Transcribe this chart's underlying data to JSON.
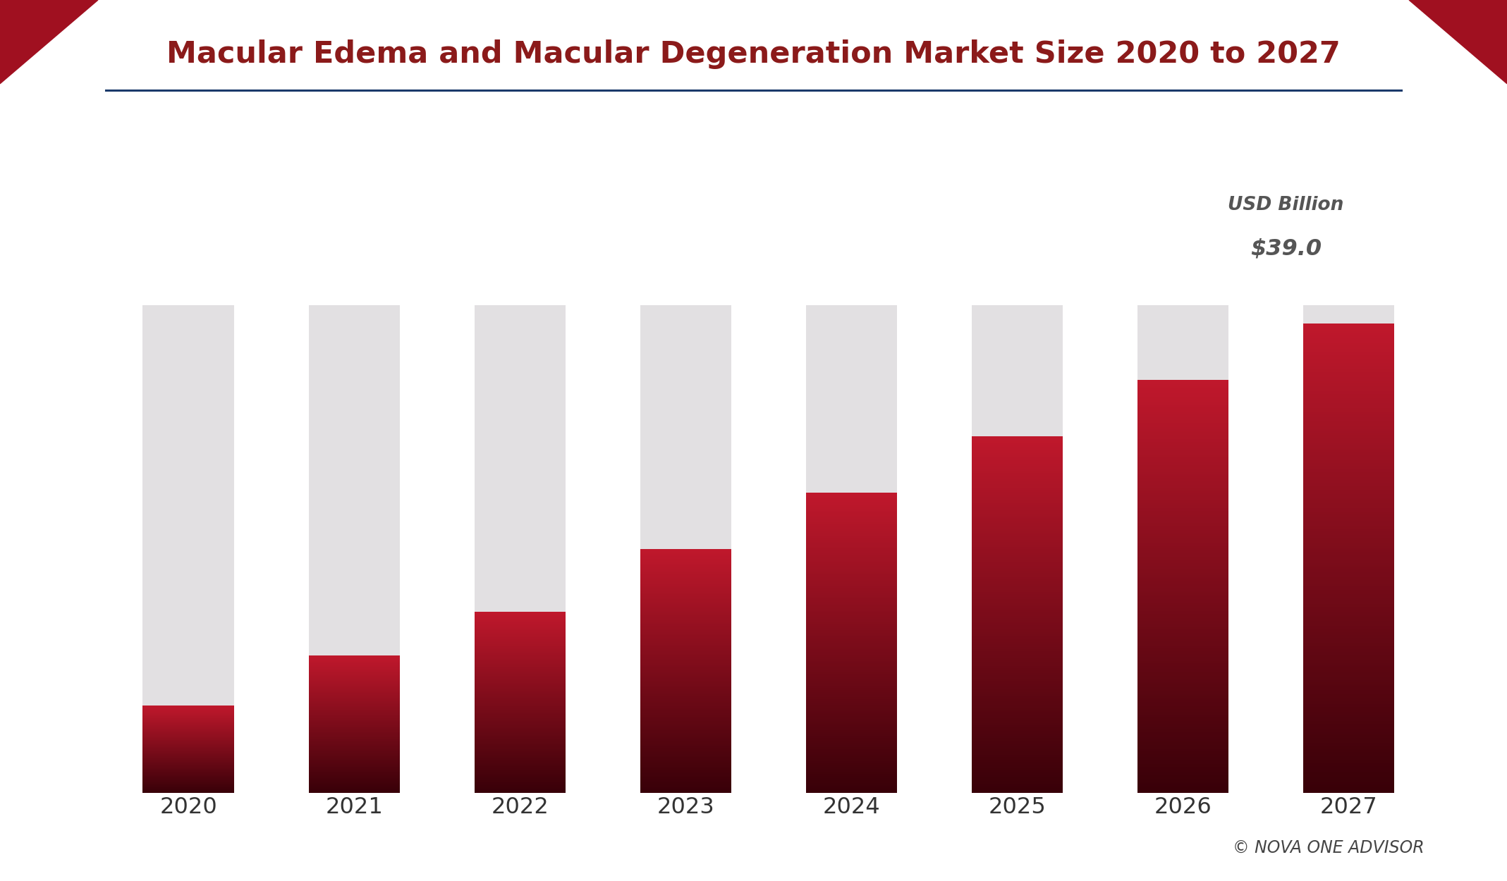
{
  "title": "Macular Edema and Macular Degeneration Market Size 2020 to 2027",
  "title_color": "#8B1A1A",
  "background_color": "#FFFFFF",
  "years": [
    "2020",
    "2021",
    "2022",
    "2023",
    "2024",
    "2025",
    "2026",
    "2027"
  ],
  "total_bar_height": 39.0,
  "red_values": [
    7.0,
    11.0,
    14.5,
    19.5,
    24.0,
    28.5,
    33.0,
    37.5
  ],
  "annotation_label": "USD Billion",
  "annotation_value": "$39.0",
  "annotation_color": "#555555",
  "copyright_text": "© NOVA ONE ADVISOR",
  "bar_gray_color": "#E2E0E2",
  "bar_red_top": "#C0182C",
  "bar_red_bottom": "#380008",
  "corner_color": "#A01020",
  "underline_color": "#1B3A6B"
}
